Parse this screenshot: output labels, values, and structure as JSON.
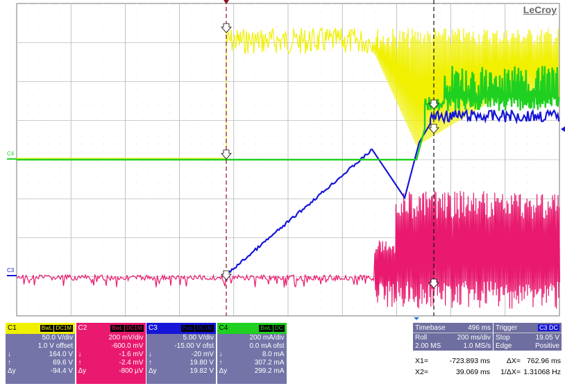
{
  "brand": "LeCroy",
  "markers": {
    "c4": "C4",
    "c3": "C3"
  },
  "channels": [
    {
      "id": "C1",
      "tag1": "BwL",
      "tag2": "DC1M",
      "head_bg": "#f0f000",
      "head_fg": "#000",
      "body_bg": "#7474a8",
      "body_fg": "#fff",
      "rows": [
        [
          "",
          "50.0 V/div"
        ],
        [
          "",
          "1.0 V offset"
        ],
        [
          "↓",
          "164.0 V"
        ],
        [
          "↑",
          "69.6 V"
        ],
        [
          "Δy",
          "-94.4 V"
        ]
      ]
    },
    {
      "id": "C2",
      "tag1": "BwL",
      "tag2": "DC1M",
      "head_bg": "#e8196e",
      "head_fg": "#fff",
      "body_bg": "#e8196e",
      "body_fg": "#fff",
      "rows": [
        [
          "",
          "200 mV/div"
        ],
        [
          "",
          "-600.0 mV"
        ],
        [
          "↓",
          "-1.6 mV"
        ],
        [
          "↑",
          "-2.4 mV"
        ],
        [
          "Δy",
          "-800 µV"
        ]
      ]
    },
    {
      "id": "C3",
      "tag1": "BwL",
      "tag2": "DC1M",
      "head_bg": "#1616d8",
      "head_fg": "#fff",
      "body_bg": "#7474a8",
      "body_fg": "#fff",
      "rows": [
        [
          "",
          "5.00 V/div"
        ],
        [
          "",
          "-15.00 V ofst"
        ],
        [
          "↓",
          "-20 mV"
        ],
        [
          "↑",
          "19.80 V"
        ],
        [
          "Δy",
          "19.82 V"
        ]
      ]
    },
    {
      "id": "C4",
      "tag1": "BwL",
      "tag2": "DC",
      "head_bg": "#20d020",
      "head_fg": "#000",
      "body_bg": "#7474a8",
      "body_fg": "#fff",
      "rows": [
        [
          "",
          "200 mA/div"
        ],
        [
          "",
          "0.0 mA ofst"
        ],
        [
          "↓",
          "8.0 mA"
        ],
        [
          "↑",
          "307.2 mA"
        ],
        [
          "Δy",
          "299.2 mA"
        ]
      ]
    }
  ],
  "timebase": {
    "label": "Timebase",
    "value": "496 ms",
    "roll": "Roll",
    "roll_val": "200 ms/div",
    "ms": "2.00 MS",
    "rate": "1.0 MS/s"
  },
  "trigger": {
    "label": "Trigger",
    "tag": "C3 DC",
    "stop": "Stop",
    "stop_val": "19.05 V",
    "edge": "Edge",
    "edge_val": "Positive"
  },
  "cursors": {
    "x1_label": "X1=",
    "x1": "-723.893 ms",
    "dx_label": "ΔX=",
    "dx": "762.96 ms",
    "x2_label": "X2=",
    "x2": "39.069 ms",
    "inv_label": "1/ΔX=",
    "inv": "1.31068 Hz"
  },
  "colors": {
    "c1": "#f0f000",
    "c2": "#e8196e",
    "c3": "#1616d8",
    "c4": "#20d020",
    "grid": "#9a9a9a"
  }
}
